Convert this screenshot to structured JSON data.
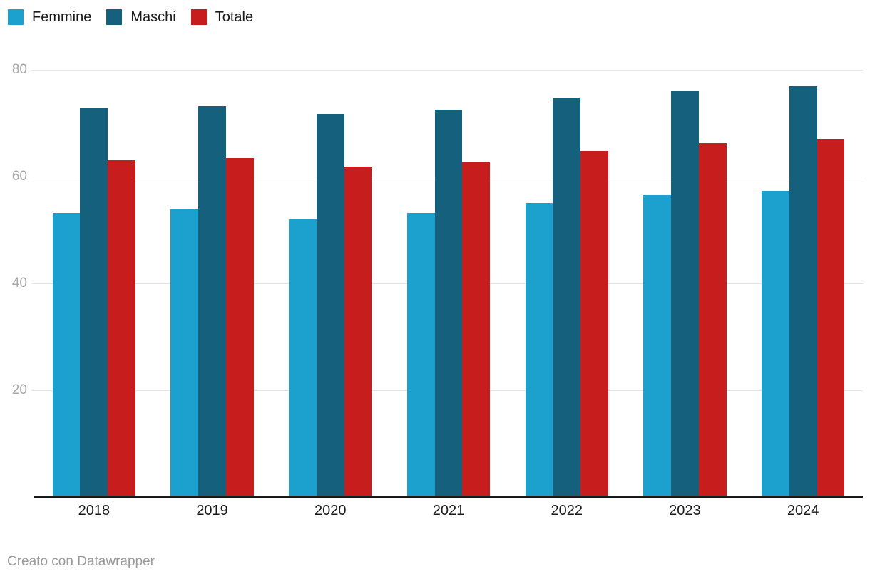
{
  "chart_data": {
    "type": "bar",
    "title": "",
    "categories": [
      "2018",
      "2019",
      "2020",
      "2021",
      "2022",
      "2023",
      "2024"
    ],
    "series": [
      {
        "name": "Femmine",
        "color": "#1CA0CE",
        "values": [
          53.2,
          53.9,
          52.0,
          53.2,
          55.1,
          56.5,
          57.3
        ]
      },
      {
        "name": "Maschi",
        "color": "#15607C",
        "values": [
          72.8,
          73.2,
          71.7,
          72.5,
          74.7,
          76.0,
          76.9
        ]
      },
      {
        "name": "Totale",
        "color": "#C71E1D",
        "values": [
          63.0,
          63.5,
          61.9,
          62.7,
          64.8,
          66.3,
          67.1
        ]
      }
    ],
    "ylim": [
      0,
      80
    ],
    "yticks": [
      80,
      60,
      40,
      20
    ],
    "grid": "horizontal",
    "legend_position": "top-left"
  },
  "footer": {
    "attribution": "Creato con Datawrapper"
  },
  "colors": {
    "background": "#ffffff",
    "axis": "#181818",
    "gridline": "#e4e4e4",
    "tick_label": "#a6a6a6",
    "text": "#1a1a1a",
    "footer_text": "#9a9a9a"
  }
}
